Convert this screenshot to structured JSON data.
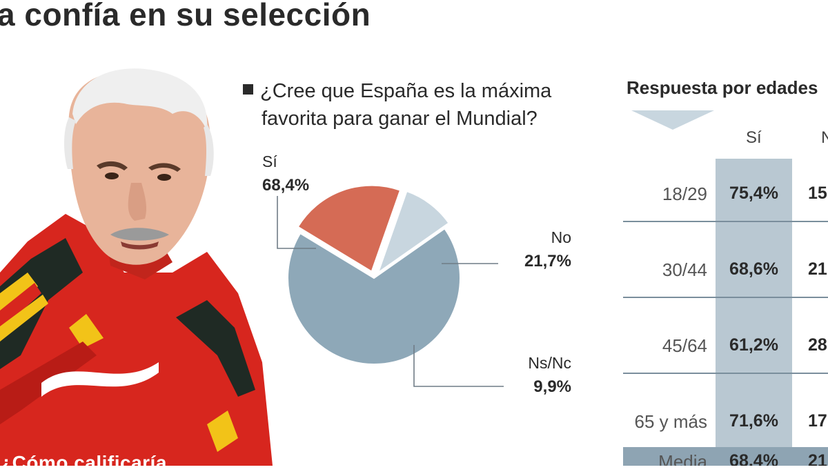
{
  "headline": "a confía en su selección",
  "bottom_teaser": "¿Cómo calificaría",
  "photo": {
    "icon": "coach-portrait"
  },
  "colors": {
    "si": "#8ea8b8",
    "no": "#d56b55",
    "nsnc": "#c8d6df",
    "table_highlight": "#b9c8d2"
  },
  "chart_data": {
    "type": "pie",
    "title": "¿Cree que España es la máxima favorita para ganar el Mundial?",
    "title_lines": [
      "¿Cree que España es la máxima",
      "favorita para ganar el Mundial?"
    ],
    "slices": [
      {
        "label": "Sí",
        "value": 68.4,
        "display": "68,4%",
        "color": "#8ea8b8"
      },
      {
        "label": "No",
        "value": 21.7,
        "display": "21,7%",
        "color": "#d56b55"
      },
      {
        "label": "Ns/Nc",
        "value": 9.9,
        "display": "9,9%",
        "color": "#c8d6df"
      }
    ]
  },
  "age_table": {
    "title": "Respuesta por edades",
    "columns": [
      "Sí",
      "N"
    ],
    "rows": [
      {
        "age": "18/29",
        "si": "75,4%",
        "no": "15"
      },
      {
        "age": "30/44",
        "si": "68,6%",
        "no": "21"
      },
      {
        "age": "45/64",
        "si": "61,2%",
        "no": "28"
      },
      {
        "age": "65 y más",
        "si": "71,6%",
        "no": "17"
      },
      {
        "age": "Media",
        "si": "68,4%",
        "no": "21"
      }
    ]
  }
}
